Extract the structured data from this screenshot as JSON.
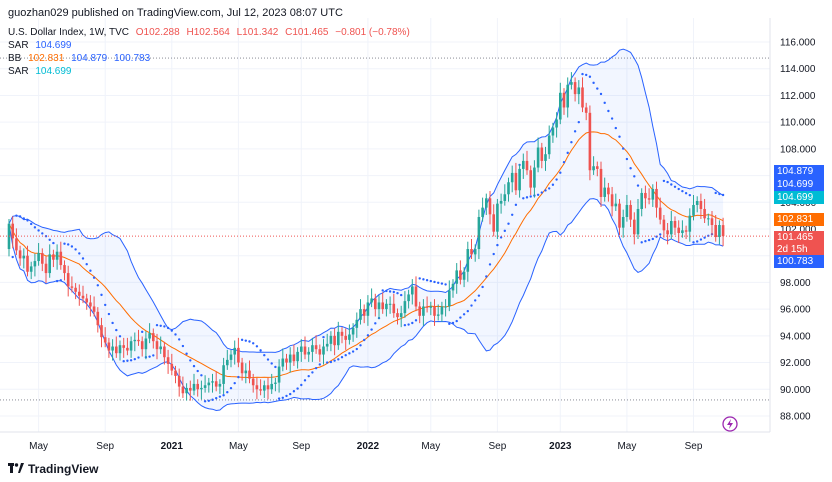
{
  "header": {
    "publisher_line": "guozhan029 published on TradingView.com, Jul 12, 2023 08:07 UTC"
  },
  "legend": {
    "symbol": "U.S. Dollar Index, 1W, TVC",
    "open": "O102.288",
    "high": "H102.564",
    "low": "L101.342",
    "close": "C101.465",
    "change": "−0.801 (−0.78%)",
    "sar1_label": "SAR",
    "sar1_value": "104.699",
    "bb_label": "BB",
    "bb_basis": "102.831",
    "bb_upper": "104.879",
    "bb_lower": "100.783",
    "sar2_label": "SAR",
    "sar2_value": "104.699"
  },
  "price_tags": {
    "bb_upper": "104.879",
    "sar": "104.699",
    "sar_cyan": "104.699",
    "bb_basis": "102.831",
    "last_price": "101.465",
    "countdown": "2d 15h",
    "bb_lower": "100.783"
  },
  "footer": {
    "brand": "TradingView",
    "logo_icon": "tradingview-logo-icon"
  },
  "colors": {
    "up": "#26a69a",
    "down": "#ef5350",
    "bb_band": "#2962ff",
    "bb_basis": "#ff6d00",
    "sar": "#2962ff",
    "sar_tag": "#00bcd4",
    "last_price": "#ef5350"
  },
  "chart_data": {
    "type": "candlestick",
    "title": "U.S. Dollar Index, 1W, TVC",
    "ylim": [
      86.8,
      117.8
    ],
    "y_ticks": [
      88,
      90,
      92,
      94,
      96,
      98,
      100,
      102,
      104,
      106,
      108,
      110,
      112,
      114,
      116
    ],
    "x_ticks": [
      "May",
      "Sep",
      "2021",
      "May",
      "Sep",
      "2022",
      "May",
      "Sep",
      "2023",
      "May",
      "Sep"
    ],
    "reference_lines": [
      114.8,
      89.2
    ],
    "close": [
      102.4,
      101.3,
      100.4,
      99.8,
      100.0,
      98.8,
      99.2,
      99.6,
      100.2,
      99.4,
      98.7,
      100.1,
      99.7,
      100.3,
      99.3,
      98.7,
      97.7,
      97.6,
      97.3,
      97.0,
      96.8,
      96.5,
      96.2,
      95.8,
      94.8,
      93.9,
      93.5,
      92.9,
      93.2,
      92.7,
      93.3,
      93.1,
      92.9,
      93.6,
      93.7,
      93.6,
      93.0,
      93.8,
      94.2,
      93.6,
      93.0,
      93.2,
      92.4,
      91.9,
      91.4,
      91.0,
      90.2,
      89.7,
      90.1,
      89.9,
      90.4,
      90.0,
      90.1,
      90.3,
      90.5,
      90.6,
      90.2,
      90.4,
      91.8,
      92.2,
      92.6,
      93.1,
      92.0,
      91.2,
      91.4,
      90.8,
      90.3,
      90.0,
      89.9,
      90.3,
      90.0,
      90.4,
      90.5,
      91.7,
      92.3,
      92.0,
      92.6,
      92.1,
      92.8,
      93.2,
      92.6,
      92.8,
      93.3,
      93.0,
      92.6,
      93.2,
      93.4,
      94.0,
      93.3,
      94.3,
      94.0,
      93.7,
      94.1,
      94.6,
      95.2,
      96.0,
      95.5,
      96.5,
      96.8,
      96.0,
      96.5,
      96.0,
      96.4,
      96.4,
      95.7,
      95.4,
      95.7,
      96.6,
      97.1,
      97.7,
      96.2,
      95.5,
      96.2,
      96.1,
      96.2,
      95.5,
      95.6,
      96.2,
      96.2,
      97.4,
      97.9,
      98.9,
      98.2,
      98.8,
      100.5,
      100.1,
      100.5,
      102.9,
      103.6,
      104.3,
      103.1,
      101.8,
      103.9,
      104.1,
      104.6,
      105.5,
      106.2,
      104.9,
      106.5,
      107.1,
      106.4,
      105.1,
      106.6,
      108.1,
      107.1,
      107.6,
      109.0,
      109.6,
      110.2,
      112.2,
      111.1,
      112.8,
      113.0,
      112.1,
      112.6,
      111.1,
      110.7,
      106.4,
      106.7,
      106.5,
      104.4,
      105.1,
      104.6,
      103.7,
      103.9,
      102.1,
      102.9,
      103.8,
      102.7,
      101.6,
      103.5,
      104.7,
      104.3,
      104.2,
      105.0,
      103.6,
      102.7,
      101.9,
      101.6,
      102.6,
      102.1,
      101.7,
      101.9,
      101.8,
      103.0,
      103.8,
      104.1,
      103.5,
      102.8,
      102.8,
      102.3,
      101.4,
      102.3,
      101.47
    ],
    "open": [
      100.5,
      102.4,
      101.3,
      100.4,
      99.8,
      100.0,
      98.8,
      99.2,
      99.6,
      100.2,
      99.4,
      98.7,
      100.1,
      99.7,
      100.3,
      99.3,
      98.7,
      97.7,
      97.6,
      97.3,
      97.0,
      96.8,
      96.5,
      96.2,
      95.8,
      94.8,
      93.9,
      93.5,
      92.9,
      93.2,
      92.7,
      93.3,
      93.1,
      92.9,
      93.6,
      93.7,
      93.6,
      93.0,
      93.8,
      94.2,
      93.6,
      93.0,
      93.2,
      92.4,
      91.9,
      91.4,
      91.0,
      90.2,
      89.7,
      90.1,
      89.9,
      90.4,
      90.0,
      90.1,
      90.3,
      90.5,
      90.6,
      90.2,
      90.4,
      91.8,
      92.2,
      92.6,
      93.1,
      92.0,
      91.2,
      91.4,
      90.8,
      90.3,
      90.0,
      89.9,
      90.3,
      90.0,
      90.4,
      90.5,
      91.7,
      92.3,
      92.0,
      92.6,
      92.1,
      92.8,
      93.2,
      92.6,
      92.8,
      93.3,
      93.0,
      92.6,
      93.2,
      93.4,
      94.0,
      93.3,
      94.3,
      94.0,
      93.7,
      94.1,
      94.6,
      95.2,
      96.0,
      95.5,
      96.5,
      96.8,
      96.0,
      96.5,
      96.0,
      96.4,
      96.4,
      95.7,
      95.4,
      95.7,
      96.6,
      97.1,
      97.7,
      96.2,
      95.5,
      96.2,
      96.1,
      96.2,
      95.5,
      95.6,
      96.2,
      96.2,
      97.4,
      97.9,
      98.9,
      98.2,
      98.8,
      100.5,
      100.1,
      100.5,
      102.9,
      103.6,
      104.3,
      103.1,
      101.8,
      103.9,
      104.1,
      104.6,
      105.5,
      106.2,
      104.9,
      106.5,
      107.1,
      106.4,
      105.1,
      106.6,
      108.1,
      107.1,
      107.6,
      109.0,
      109.6,
      110.2,
      112.2,
      111.1,
      112.8,
      113.0,
      112.1,
      112.6,
      111.1,
      110.7,
      106.4,
      106.7,
      106.5,
      104.4,
      105.1,
      104.6,
      103.7,
      103.9,
      102.1,
      102.9,
      103.8,
      102.7,
      101.6,
      103.5,
      104.7,
      104.3,
      104.2,
      105.0,
      103.6,
      102.7,
      101.9,
      101.6,
      102.6,
      102.1,
      101.7,
      101.9,
      101.8,
      103.0,
      103.8,
      104.1,
      103.5,
      102.8,
      102.8,
      102.3,
      101.4,
      102.29
    ]
  }
}
